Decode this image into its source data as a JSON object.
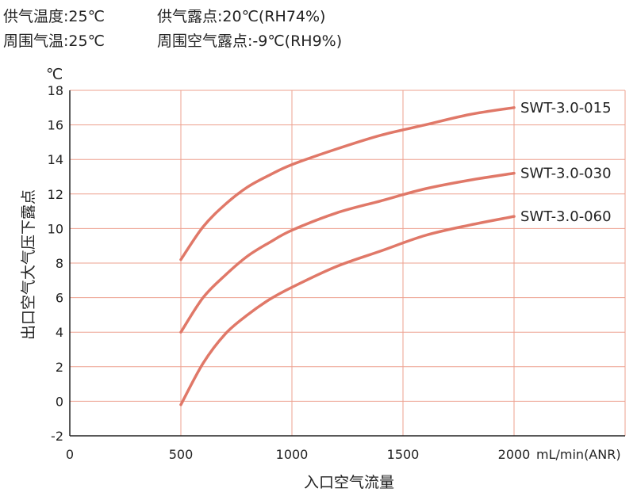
{
  "conditions": {
    "supply_temp": "供气温度:25℃",
    "supply_dewpoint": "供气露点:20℃(RH74%)",
    "ambient_temp": "周围气温:25℃",
    "ambient_dewpoint": "周围空气露点:-9℃(RH9%)"
  },
  "colors": {
    "curve": "#e07868",
    "grid": "#eda08f",
    "axis": "#222222"
  },
  "chart_data": {
    "type": "line",
    "xlabel": "入口空气流量",
    "xunit": "mL/min(ANR)",
    "ylabel": "出口空气大气压下露点",
    "yunit": "℃",
    "xlim": [
      0,
      2500
    ],
    "ylim": [
      -2,
      18
    ],
    "x_ticks": [
      0,
      500,
      1000,
      1500,
      2000
    ],
    "x_tick_labels": [
      "0",
      "500",
      "1000",
      "1500",
      "2000"
    ],
    "y_ticks": [
      -2,
      0,
      2,
      4,
      6,
      8,
      10,
      12,
      14,
      16,
      18
    ],
    "y_tick_labels": [
      "-2",
      "0",
      "2",
      "4",
      "6",
      "8",
      "10",
      "12",
      "14",
      "16",
      "18"
    ],
    "grid": true,
    "series": [
      {
        "name": "SWT-3.0-015",
        "x": [
          500,
          600,
          700,
          800,
          900,
          1000,
          1200,
          1400,
          1600,
          1800,
          2000
        ],
        "y": [
          8.2,
          10.1,
          11.4,
          12.4,
          13.1,
          13.7,
          14.6,
          15.4,
          16.0,
          16.6,
          17.0
        ]
      },
      {
        "name": "SWT-3.0-030",
        "x": [
          500,
          600,
          700,
          800,
          900,
          1000,
          1200,
          1400,
          1600,
          1800,
          2000
        ],
        "y": [
          4.0,
          6.0,
          7.3,
          8.4,
          9.2,
          9.9,
          10.9,
          11.6,
          12.3,
          12.8,
          13.2
        ]
      },
      {
        "name": "SWT-3.0-060",
        "x": [
          500,
          600,
          700,
          800,
          900,
          1000,
          1200,
          1400,
          1600,
          1800,
          2000
        ],
        "y": [
          -0.2,
          2.2,
          3.9,
          5.0,
          5.9,
          6.6,
          7.8,
          8.7,
          9.6,
          10.2,
          10.7
        ]
      }
    ]
  }
}
